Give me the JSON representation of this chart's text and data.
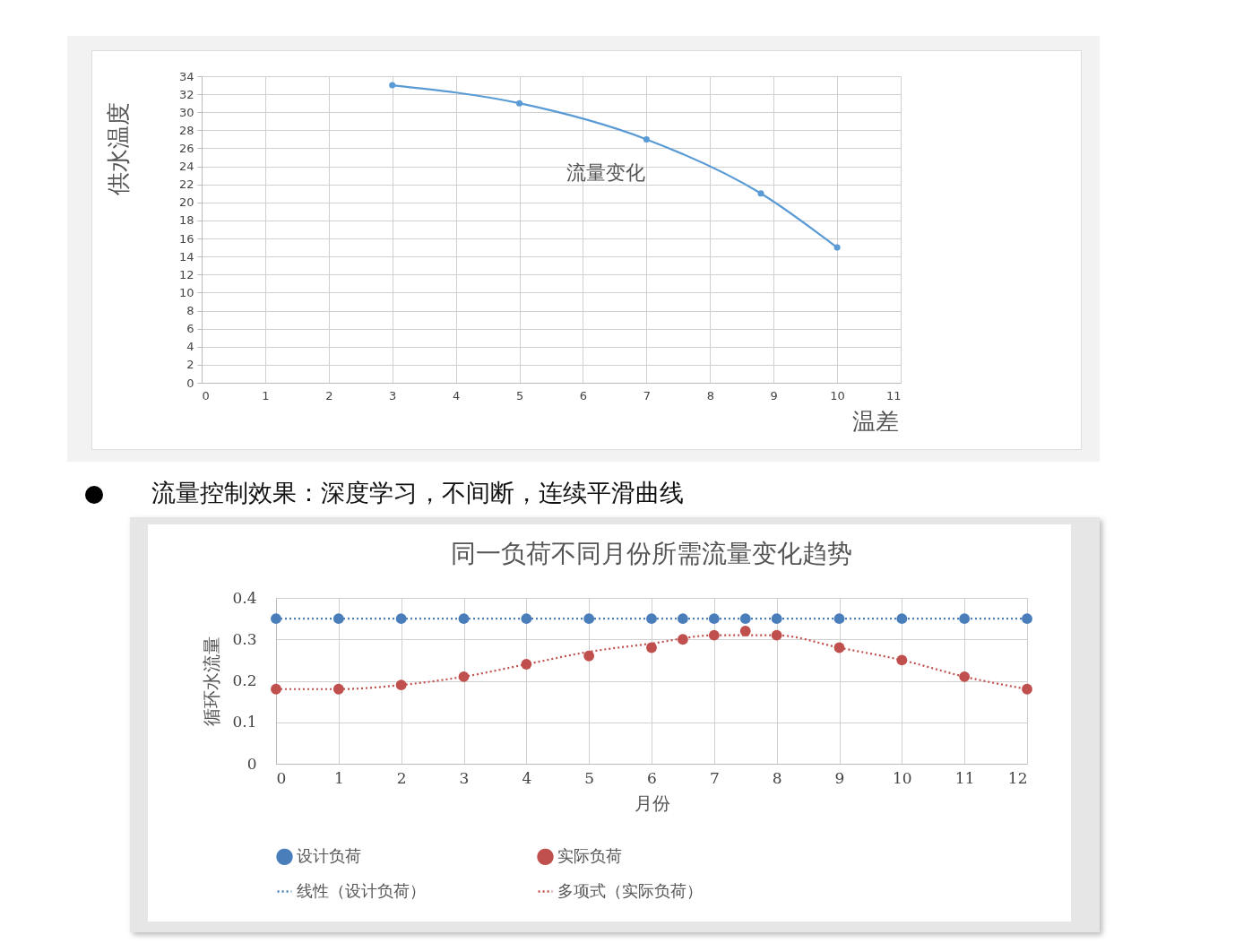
{
  "chart_data": [
    {
      "type": "line",
      "xlabel": "温差",
      "ylabel": "供水温度",
      "x": [
        3,
        5,
        7,
        8.8,
        10
      ],
      "series": [
        {
          "name": "流量变化",
          "color": "#5b9bd5",
          "values": [
            33,
            31,
            27,
            21,
            15
          ]
        }
      ],
      "xlim": [
        0,
        11
      ],
      "xticks": [
        0,
        1,
        2,
        3,
        4,
        5,
        6,
        7,
        8,
        9,
        10,
        11
      ],
      "ylim": [
        0,
        34
      ],
      "yticks": [
        0,
        2,
        4,
        6,
        8,
        10,
        12,
        14,
        16,
        18,
        20,
        22,
        24,
        26,
        28,
        30,
        32,
        34
      ],
      "grid": true,
      "marker": "circle",
      "line_style": "solid"
    },
    {
      "type": "scatter",
      "title": "同一负荷不同月份所需流量变化趋势",
      "xlabel": "月份",
      "ylabel": "循环水流量",
      "series": [
        {
          "name": "设计负荷",
          "color": "#4a7ebb",
          "x": [
            0,
            1,
            2,
            3,
            4,
            5,
            6,
            6.5,
            7,
            7.5,
            8,
            9,
            10,
            11,
            12
          ],
          "values": [
            0.35,
            0.35,
            0.35,
            0.35,
            0.35,
            0.35,
            0.35,
            0.35,
            0.35,
            0.35,
            0.35,
            0.35,
            0.35,
            0.35,
            0.35
          ]
        },
        {
          "name": "实际负荷",
          "color": "#c0504d",
          "x": [
            0,
            1,
            2,
            3,
            4,
            5,
            6,
            6.5,
            7,
            7.5,
            8,
            9,
            10,
            11,
            12
          ],
          "values": [
            0.18,
            0.18,
            0.19,
            0.21,
            0.24,
            0.26,
            0.28,
            0.3,
            0.31,
            0.32,
            0.31,
            0.28,
            0.25,
            0.21,
            0.18
          ]
        },
        {
          "name": "线性（设计负荷）",
          "type": "line",
          "marker": "none",
          "color": "#4a7ebb",
          "x": [
            0,
            12
          ],
          "values": [
            0.35,
            0.35
          ]
        },
        {
          "name": "多项式（实际负荷）",
          "type": "line",
          "marker": "none",
          "color": "#c0504d",
          "x": [
            0,
            1,
            2,
            3,
            4,
            5,
            6,
            7,
            8,
            9,
            10,
            11,
            12
          ],
          "values": [
            0.18,
            0.18,
            0.19,
            0.21,
            0.24,
            0.27,
            0.29,
            0.31,
            0.31,
            0.28,
            0.25,
            0.21,
            0.18
          ]
        }
      ],
      "xlim": [
        0,
        12
      ],
      "xticks": [
        0,
        1,
        2,
        3,
        4,
        5,
        6,
        7,
        8,
        9,
        10,
        11,
        12
      ],
      "ylim": [
        0,
        0.4
      ],
      "yticks": [
        0,
        0.1,
        0.2,
        0.3,
        0.4
      ],
      "grid": true,
      "legend": "bottom",
      "marker": "circle",
      "line_style": "dotted",
      "annotations": [
        "流量控制效果：深度学习，不间断，连续平滑曲线"
      ]
    }
  ]
}
